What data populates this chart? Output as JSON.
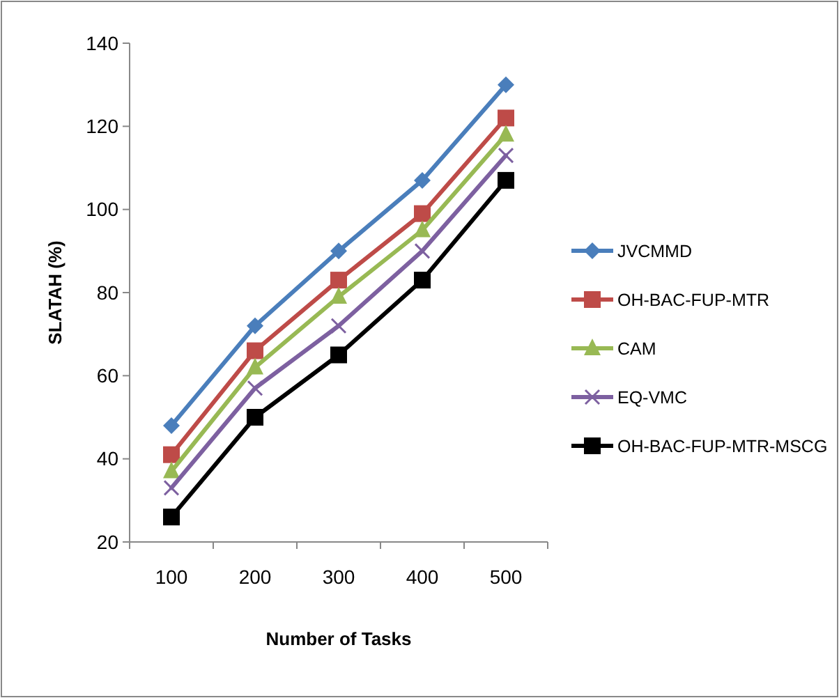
{
  "chart_data": {
    "type": "line",
    "xlabel": "Number of Tasks",
    "ylabel": "SLATAH (%)",
    "categories": [
      "100",
      "200",
      "300",
      "400",
      "500"
    ],
    "ylim": [
      20,
      140
    ],
    "yticks": [
      20,
      40,
      60,
      80,
      100,
      120,
      140
    ],
    "grid": false,
    "legend": "right",
    "series": [
      {
        "name": "JVCMMD",
        "color": "#4a7ebb",
        "marker": "diamond",
        "values": [
          48,
          72,
          90,
          107,
          130
        ]
      },
      {
        "name": "OH-BAC-FUP-MTR",
        "color": "#be4b48",
        "marker": "square",
        "values": [
          41,
          66,
          83,
          99,
          122
        ]
      },
      {
        "name": "CAM",
        "color": "#98b954",
        "marker": "triangle",
        "values": [
          37,
          62,
          79,
          95,
          118
        ]
      },
      {
        "name": "EQ-VMC",
        "color": "#7d60a0",
        "marker": "cross",
        "values": [
          33,
          57,
          72,
          90,
          113
        ]
      },
      {
        "name": "OH-BAC-FUP-MTR-MSCG",
        "color": "#000000",
        "marker": "square",
        "values": [
          26,
          50,
          65,
          83,
          107
        ]
      }
    ]
  }
}
